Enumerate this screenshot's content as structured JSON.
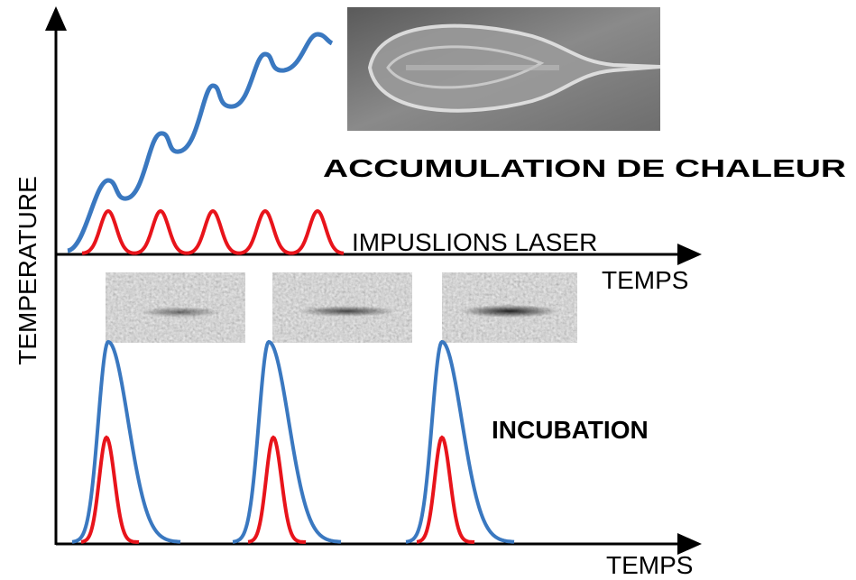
{
  "accumulation_title": "ACCUMULATION DE CHALEUR",
  "pulses_label": "IMPUSLIONS LASER",
  "upper_time_axis": "TEMPS",
  "temperature_axis": "TEMPERATURE",
  "incubation_title": "INCUBATION",
  "lower_time_axis": "TEMPS"
}
